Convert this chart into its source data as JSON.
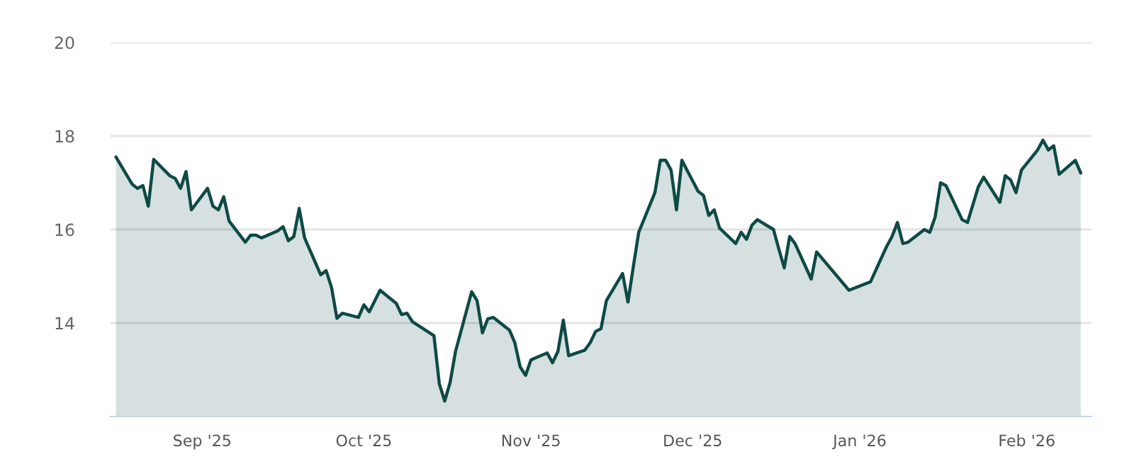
{
  "chart_data": {
    "type": "area",
    "x": [
      "2025-08-16",
      "2025-08-19",
      "2025-08-20",
      "2025-08-21",
      "2025-08-22",
      "2025-08-23",
      "2025-08-26",
      "2025-08-27",
      "2025-08-28",
      "2025-08-29",
      "2025-08-30",
      "2025-09-02",
      "2025-09-03",
      "2025-09-04",
      "2025-09-05",
      "2025-09-06",
      "2025-09-09",
      "2025-09-10",
      "2025-09-11",
      "2025-09-12",
      "2025-09-15",
      "2025-09-16",
      "2025-09-17",
      "2025-09-18",
      "2025-09-19",
      "2025-09-20",
      "2025-09-23",
      "2025-09-24",
      "2025-09-25",
      "2025-09-26",
      "2025-09-27",
      "2025-09-30",
      "2025-10-01",
      "2025-10-02",
      "2025-10-04",
      "2025-10-07",
      "2025-10-08",
      "2025-10-09",
      "2025-10-10",
      "2025-10-14",
      "2025-10-15",
      "2025-10-16",
      "2025-10-17",
      "2025-10-18",
      "2025-10-21",
      "2025-10-22",
      "2025-10-23",
      "2025-10-24",
      "2025-10-25",
      "2025-10-28",
      "2025-10-29",
      "2025-10-30",
      "2025-10-31",
      "2025-11-01",
      "2025-11-04",
      "2025-11-05",
      "2025-11-06",
      "2025-11-07",
      "2025-11-08",
      "2025-11-11",
      "2025-11-12",
      "2025-11-13",
      "2025-11-14",
      "2025-11-15",
      "2025-11-18",
      "2025-11-19",
      "2025-11-20",
      "2025-11-21",
      "2025-11-24",
      "2025-11-25",
      "2025-11-26",
      "2025-11-27",
      "2025-11-28",
      "2025-11-29",
      "2025-12-02",
      "2025-12-03",
      "2025-12-04",
      "2025-12-05",
      "2025-12-06",
      "2025-12-09",
      "2025-12-10",
      "2025-12-11",
      "2025-12-12",
      "2025-12-13",
      "2025-12-16",
      "2025-12-17",
      "2025-12-18",
      "2025-12-19",
      "2025-12-20",
      "2025-12-23",
      "2025-12-24",
      "2025-12-30",
      "2026-01-03",
      "2026-01-06",
      "2026-01-07",
      "2026-01-08",
      "2026-01-09",
      "2026-01-10",
      "2026-01-13",
      "2026-01-14",
      "2026-01-15",
      "2026-01-16",
      "2026-01-17",
      "2026-01-20",
      "2026-01-21",
      "2026-01-23",
      "2026-01-24",
      "2026-01-27",
      "2026-01-28",
      "2026-01-29",
      "2026-01-30",
      "2026-01-31",
      "2026-02-03",
      "2026-02-04",
      "2026-02-05",
      "2026-02-06",
      "2026-02-07",
      "2026-02-10",
      "2026-02-11"
    ],
    "series": [
      {
        "color": "#0e4a45",
        "values": [
          17.55,
          16.97,
          16.88,
          16.94,
          16.5,
          17.5,
          17.15,
          17.09,
          16.88,
          17.24,
          16.42,
          16.88,
          16.5,
          16.42,
          16.7,
          16.18,
          15.73,
          15.88,
          15.88,
          15.82,
          15.97,
          16.06,
          15.76,
          15.85,
          16.45,
          15.82,
          15.03,
          15.12,
          14.76,
          14.1,
          14.21,
          14.12,
          14.39,
          14.24,
          14.7,
          14.42,
          14.18,
          14.21,
          14.03,
          13.73,
          12.7,
          12.33,
          12.73,
          13.39,
          14.67,
          14.48,
          13.79,
          14.09,
          14.12,
          13.85,
          13.58,
          13.06,
          12.88,
          13.21,
          13.36,
          13.15,
          13.39,
          14.06,
          13.3,
          13.42,
          13.58,
          13.82,
          13.88,
          14.48,
          15.06,
          14.45,
          15.21,
          15.94,
          16.79,
          17.48,
          17.48,
          17.27,
          16.42,
          17.48,
          16.82,
          16.73,
          16.3,
          16.42,
          16.03,
          15.7,
          15.94,
          15.79,
          16.09,
          16.21,
          16.0,
          15.58,
          15.18,
          15.85,
          15.7,
          14.94,
          15.52,
          14.7,
          14.88,
          15.64,
          15.85,
          16.15,
          15.7,
          15.73,
          16.0,
          15.94,
          16.27,
          17.0,
          16.94,
          16.21,
          16.15,
          16.91,
          17.12,
          16.58,
          17.15,
          17.06,
          16.79,
          17.27,
          17.7,
          17.91,
          17.7,
          17.79,
          17.18,
          17.48,
          17.21
        ]
      }
    ],
    "xlim": [
      "2025-08-15",
      "2026-02-13"
    ],
    "xticks": [
      {
        "value": "2025-09-01",
        "label": "Sep '25"
      },
      {
        "value": "2025-10-01",
        "label": "Oct '25"
      },
      {
        "value": "2025-11-01",
        "label": "Nov '25"
      },
      {
        "value": "2025-12-01",
        "label": "Dec '25"
      },
      {
        "value": "2026-01-01",
        "label": "Jan '26"
      },
      {
        "value": "2026-02-01",
        "label": "Feb '26"
      }
    ],
    "ylim": [
      12,
      20
    ],
    "yticks": [
      14,
      16,
      18,
      20
    ],
    "grid": "y",
    "line_style": "solid",
    "marker": "none"
  }
}
